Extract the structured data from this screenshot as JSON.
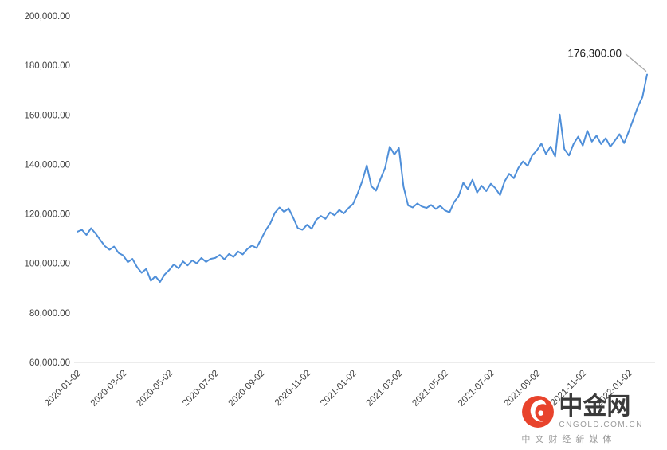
{
  "chart_data": {
    "type": "line",
    "title": "",
    "xlabel": "",
    "ylabel": "",
    "grid": false,
    "legend": "none",
    "line_color": "#4f8fd9",
    "axis_color": "#d9d9d9",
    "label_color": "#404040",
    "annotation_line_color": "#a6a6a6",
    "ylim": [
      60000,
      200000
    ],
    "y_ticks": [
      60000,
      80000,
      100000,
      120000,
      140000,
      160000,
      180000,
      200000
    ],
    "x_tick_labels": [
      "2020-01-02",
      "2020-03-02",
      "2020-05-02",
      "2020-07-02",
      "2020-09-02",
      "2020-11-02",
      "2021-01-02",
      "2021-03-02",
      "2021-05-02",
      "2021-07-02",
      "2021-09-02",
      "2021-11-02",
      "2022-01-02"
    ],
    "tick_every": 10,
    "values": [
      112800,
      113600,
      111500,
      114200,
      112000,
      109500,
      107000,
      105500,
      106800,
      104200,
      103200,
      100500,
      101800,
      98500,
      96200,
      97800,
      93000,
      94800,
      92500,
      95500,
      97300,
      99600,
      98000,
      100800,
      99200,
      101200,
      100000,
      102200,
      100600,
      101800,
      102200,
      103400,
      101600,
      103800,
      102600,
      104800,
      103600,
      105800,
      107200,
      106200,
      109800,
      113400,
      116200,
      120400,
      122600,
      120800,
      122200,
      118400,
      114200,
      113600,
      115600,
      114000,
      117600,
      119200,
      118000,
      120600,
      119400,
      121600,
      120200,
      122300,
      124000,
      128200,
      133200,
      139600,
      131200,
      129400,
      134200,
      138600,
      147200,
      144000,
      146600,
      131000,
      123400,
      122600,
      124200,
      123000,
      122400,
      123600,
      122000,
      123200,
      121400,
      120600,
      124800,
      127200,
      132600,
      130000,
      133800,
      128600,
      131400,
      129200,
      132200,
      130400,
      127600,
      133200,
      136200,
      134400,
      138600,
      141200,
      139400,
      143600,
      145600,
      148400,
      144200,
      147200,
      143200,
      160200,
      146200,
      143600,
      148200,
      151200,
      147600,
      153600,
      149200,
      151600,
      148200,
      150600,
      147200,
      149600,
      152200,
      148600,
      153200,
      158200,
      163400,
      167200,
      176300
    ],
    "annotation": {
      "text": "176,300.00",
      "point_index": 124,
      "value": 176300
    }
  },
  "watermark": {
    "brand": "中金网",
    "domain": "CNGOLD.COM.CN",
    "tagline": "中文财经新媒体",
    "logo_color": "#e8432c"
  }
}
